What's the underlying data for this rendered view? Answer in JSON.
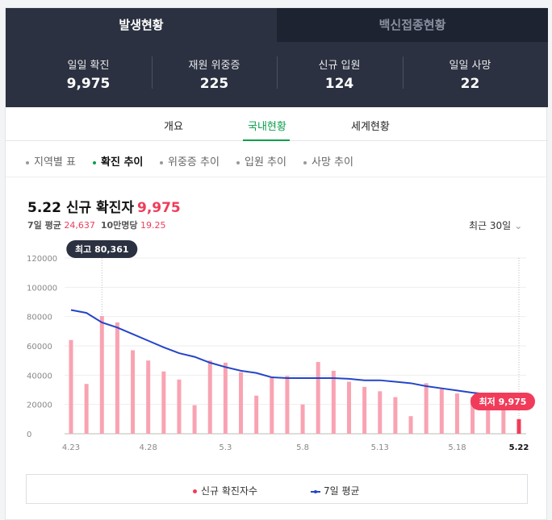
{
  "tabs": [
    {
      "label": "발생현황",
      "active": true
    },
    {
      "label": "백신접종현황",
      "active": false
    }
  ],
  "stats": [
    {
      "label": "일일 확진",
      "value": "9,975"
    },
    {
      "label": "재원 위중증",
      "value": "225"
    },
    {
      "label": "신규 입원",
      "value": "124"
    },
    {
      "label": "일일 사망",
      "value": "22"
    }
  ],
  "subnav": [
    "개요",
    "국내현황",
    "세계현황"
  ],
  "subnav_active": "국내현황",
  "pills": [
    "지역별 표",
    "확진 추이",
    "위중증 추이",
    "입원 추이",
    "사망 추이"
  ],
  "pills_active": "확진 추이",
  "header": {
    "date": "5.22 신규 확진자",
    "value": "9,975",
    "avg_label": "7일 평균",
    "avg_value": "24,637",
    "per_label": "10만명당",
    "per_value": "19.25",
    "period": "최근 30일",
    "period_chevron": "chevron-down-icon"
  },
  "tooltips": {
    "max": "최고 80,361",
    "min": "최저 9,975"
  },
  "legend": {
    "bars": "신규 확진자수",
    "line": "7일 평균"
  },
  "colors": {
    "bar": "#f9a3b2",
    "bar_last": "#f03c5a",
    "line": "#2445c9",
    "header_bg": "#2b3140",
    "accent": "#0a9d4c"
  },
  "chart_data": {
    "type": "bar",
    "categories": [
      "4.23",
      "4.24",
      "4.25",
      "4.26",
      "4.27",
      "4.28",
      "4.29",
      "4.30",
      "5.1",
      "5.2",
      "5.3",
      "5.4",
      "5.5",
      "5.6",
      "5.7",
      "5.8",
      "5.9",
      "5.10",
      "5.11",
      "5.12",
      "5.13",
      "5.14",
      "5.15",
      "5.16",
      "5.17",
      "5.18",
      "5.19",
      "5.20",
      "5.21",
      "5.22"
    ],
    "x_tick_labels": [
      "4.23",
      "4.28",
      "5.3",
      "5.8",
      "5.13",
      "5.18",
      "5.22"
    ],
    "y_ticks": [
      0,
      20000,
      40000,
      60000,
      80000,
      100000,
      120000
    ],
    "y_tick_labels": [
      "0",
      "20000",
      "40000",
      "60000",
      "80000",
      "100000",
      "120000"
    ],
    "ylim": [
      0,
      120000
    ],
    "series": [
      {
        "name": "신규 확진자수",
        "type": "bar",
        "values": [
          64000,
          34000,
          80361,
          76000,
          57000,
          50000,
          42500,
          37000,
          19500,
          50000,
          48500,
          42000,
          26000,
          38500,
          39500,
          20000,
          49000,
          43000,
          35500,
          32000,
          29000,
          25000,
          12000,
          34500,
          30500,
          27500,
          25000,
          20500,
          17500,
          9975
        ]
      },
      {
        "name": "7일 평균",
        "type": "line",
        "values": [
          84500,
          82500,
          76000,
          72500,
          68000,
          63500,
          59000,
          55000,
          52500,
          48500,
          45500,
          43000,
          41500,
          38500,
          38000,
          38000,
          38000,
          38000,
          37500,
          36500,
          36500,
          35500,
          34500,
          32500,
          31000,
          29500,
          28000,
          27000,
          26000,
          24637
        ]
      }
    ]
  }
}
